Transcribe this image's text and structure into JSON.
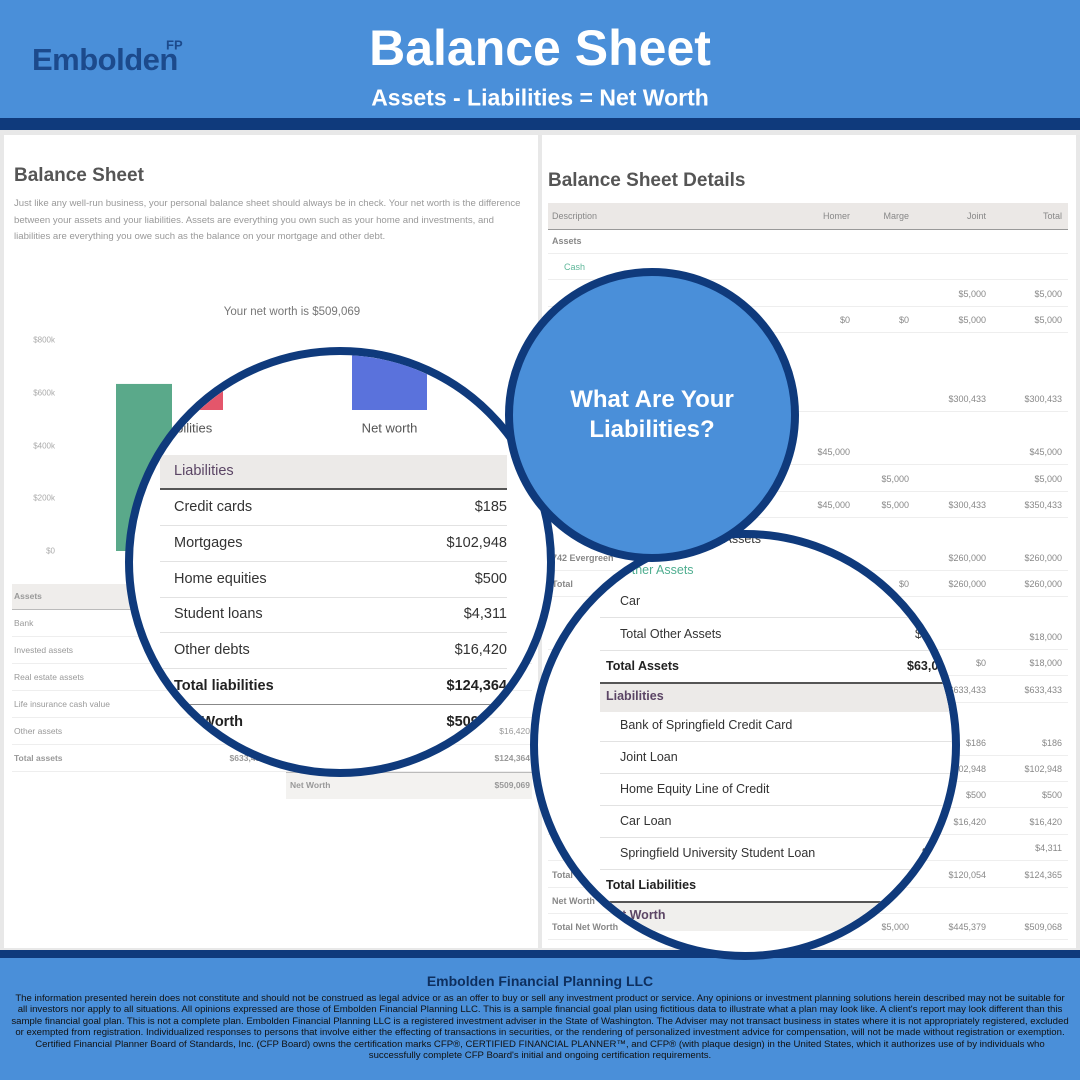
{
  "header": {
    "brand": "Embolden",
    "brand_mark": "FP",
    "title": "Balance Sheet",
    "subtitle": "Assets - Liabilities = Net Worth"
  },
  "summary": {
    "title": "Balance Sheet",
    "description": "Just like any well-run business, your personal balance sheet should always be in check. Your net worth is the difference between your assets and your liabilities. Assets are everything you own such as your home and investments, and liabilities are everything you owe such as the balance on your mortgage and other debt.",
    "chart": {
      "type": "bar",
      "title": "Your net worth is $509,069",
      "categories": [
        null,
        "Liabilities",
        "Net worth"
      ],
      "values": [
        633433,
        124364,
        509069
      ],
      "colors": [
        "#5aa98a",
        "#e4566b",
        "#5a72dc"
      ],
      "ylim": [
        0,
        800000
      ],
      "yticks": [
        {
          "value": 800000,
          "label": "$800k"
        },
        {
          "value": 600000,
          "label": "$600k"
        },
        {
          "value": 400000,
          "label": "$400k"
        },
        {
          "value": 200000,
          "label": "$200k"
        },
        {
          "value": 0,
          "label": "$0"
        }
      ]
    },
    "asset_rows": [
      "Assets",
      "Bank",
      "Invested assets",
      "Real estate assets",
      "Life insurance cash value",
      "Other assets",
      "Total assets"
    ],
    "total_assets_value": "$633,433",
    "liability_values": [
      "$16,420",
      "$124,364"
    ],
    "net_worth": {
      "label": "Net Worth",
      "value": "$509,069"
    }
  },
  "liabilities_zoom": {
    "header": "Liabilities",
    "rows": [
      {
        "label": "Credit cards",
        "value": "$185"
      },
      {
        "label": "Mortgages",
        "value": "$102,948"
      },
      {
        "label": "Home equities",
        "value": "$500"
      },
      {
        "label": "Student loans",
        "value": "$4,311"
      },
      {
        "label": "Other debts",
        "value": "$16,420"
      }
    ],
    "total": {
      "label": "Total liabilities",
      "value": "$124,364"
    },
    "net_worth": {
      "label": "Net Worth",
      "value": "$509,069"
    }
  },
  "callout": {
    "line1": "What Are Your",
    "line2": "Liabilities?"
  },
  "details": {
    "title": "Balance Sheet Details",
    "columns": [
      "Description",
      "Homer",
      "Marge",
      "Joint",
      "Total"
    ],
    "rows": [
      {
        "label": "Assets",
        "cells": [
          null,
          null,
          null,
          null
        ]
      },
      {
        "label": "Cash",
        "cells": [
          null,
          null,
          null,
          null
        ]
      },
      {
        "label": null,
        "cells": [
          null,
          null,
          "$5,000",
          "$5,000"
        ]
      },
      {
        "label": null,
        "cells": [
          "$0",
          "$0",
          "$5,000",
          "$5,000"
        ]
      },
      {
        "label": null,
        "cells": [
          null,
          null,
          "$300,433",
          "$300,433"
        ]
      },
      {
        "label": null,
        "cells": [
          "$45,000",
          null,
          null,
          "$45,000"
        ]
      },
      {
        "label": null,
        "cells": [
          null,
          "$5,000",
          null,
          "$5,000"
        ]
      },
      {
        "label": null,
        "cells": [
          "$45,000",
          "$5,000",
          "$300,433",
          "$350,433"
        ]
      },
      {
        "label": "742 Evergreen",
        "cells": [
          null,
          null,
          "$260,000",
          "$260,000"
        ]
      },
      {
        "label": "Total",
        "cells": [
          null,
          "$0",
          "$260,000",
          "$260,000"
        ]
      },
      {
        "label": null,
        "cells": [
          null,
          null,
          null,
          "$18,000"
        ]
      },
      {
        "label": null,
        "cells": [
          null,
          null,
          "$0",
          "$18,000"
        ]
      },
      {
        "label": null,
        "cells": [
          null,
          null,
          "$633,433",
          "$633,433"
        ]
      },
      {
        "label": null,
        "cells": [
          null,
          null,
          "$186",
          "$186"
        ]
      },
      {
        "label": null,
        "cells": [
          null,
          null,
          "$102,948",
          "$102,948"
        ]
      },
      {
        "label": null,
        "cells": [
          null,
          null,
          "$500",
          "$500"
        ]
      },
      {
        "label": null,
        "cells": [
          null,
          null,
          "$16,420",
          "$16,420"
        ]
      },
      {
        "label": null,
        "cells": [
          null,
          null,
          null,
          "$4,311"
        ]
      },
      {
        "label": "Total",
        "cells": [
          null,
          null,
          "$120,054",
          "$124,365"
        ]
      },
      {
        "label": "Net Worth",
        "cells": [
          null,
          null,
          null,
          null
        ]
      },
      {
        "label": "Total Net Worth",
        "cells": [
          null,
          "$5,000",
          "$445,379",
          "$509,068"
        ]
      }
    ]
  },
  "details_zoom": {
    "section": "Assets",
    "other_assets": "Other Assets",
    "car": "Car",
    "total_other_assets": {
      "label": "Total Other Assets",
      "value": "$1"
    },
    "total_assets": {
      "label": "Total Assets",
      "value": "$63,0"
    },
    "liabilities": "Liabilities",
    "liability_rows": [
      "Bank of Springfield Credit Card",
      "Joint Loan",
      "Home Equity Line of Credit",
      "Car Loan",
      "Springfield University Student Loan"
    ],
    "student_loan_value": "$",
    "total_liabilities": "Total Liabilities",
    "net_worth": "Net Worth",
    "total_net_worth": "Total Net Worth"
  },
  "footer": {
    "company": "Embolden Financial Planning LLC",
    "disclaimer": "The information presented herein does not constitute and should not be construed as legal advice or as an offer to buy or sell any investment product or service. Any opinions or investment planning solutions herein described may not be suitable for all investors nor apply to all situations. All opinions expressed are those of Embolden Financial Planning LLC. This is a sample financial goal plan using fictitious data to illustrate what a plan may look like. A client's report may look different than this sample financial goal plan. This is not a complete plan. Embolden Financial Planning LLC is a registered investment adviser in the State of Washington. The Adviser may not transact business in states where it is not appropriately registered, excluded or exempted from registration. Individualized responses to persons that involve either the effecting of transactions in securities, or the rendering of personalized investment advice for compensation, will not be made without registration or exemption. Certified Financial Planner Board of Standards, Inc. (CFP Board) owns the certification marks CFP®, CERTIFIED FINANCIAL PLANNER™, and CFP® (with plaque design) in the United States, which it authorizes use of by individuals who successfully complete CFP Board's initial and ongoing certification requirements."
  }
}
